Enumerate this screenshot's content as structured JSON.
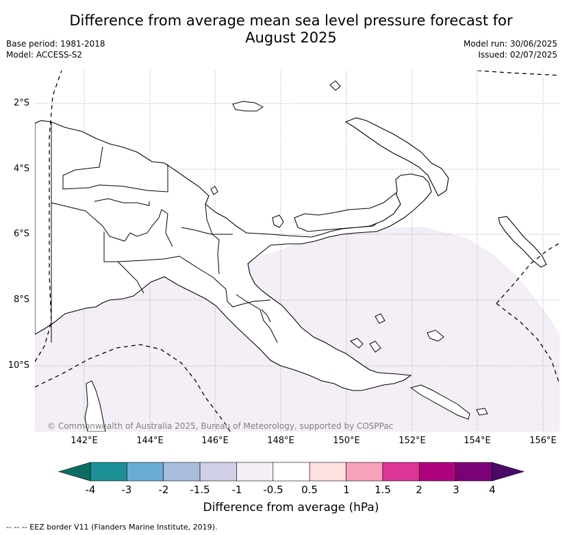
{
  "title": "Difference from average mean sea level pressure forecast for August 2025",
  "title_line1": "Difference from average mean sea level pressure forecast for",
  "title_line2": "August 2025",
  "base_period": "Base period: 1981-2018",
  "model": "Model: ACCESS-S2",
  "model_run": "Model run: 30/06/2025",
  "issued": "Issued: 02/07/2025",
  "map": {
    "lat_labels": [
      "2°S",
      "4°S",
      "6°S",
      "8°S",
      "10°S"
    ],
    "lon_labels": [
      "142°E",
      "144°E",
      "146°E",
      "148°E",
      "150°E",
      "152°E",
      "154°E",
      "156°E"
    ],
    "region": "Papua New Guinea",
    "shading_color": "#f4eef6",
    "copyright": "© Commonwealth of Australia 2025, Bureau of Meteorology, supported by COSPPac"
  },
  "colorbar": {
    "title": "Difference from average (hPa)",
    "labels": [
      "-4",
      "-3",
      "-2",
      "-1.5",
      "-1",
      "-0.5",
      "0.5",
      "1",
      "1.5",
      "2",
      "3",
      "4"
    ],
    "under_color": "#0b6e63",
    "over_color": "#4a0a6a",
    "colors": [
      "#1b9096",
      "#68acd4",
      "#a8bcdc",
      "#d0d0e6",
      "#f4eef6",
      "#ffffff",
      "#fde0df",
      "#f7a1ba",
      "#dd3497",
      "#ae017e",
      "#7a0177"
    ]
  },
  "eez_legend": "-- -- -- EEZ border V11 (Flanders Marine Institute, 2019)."
}
